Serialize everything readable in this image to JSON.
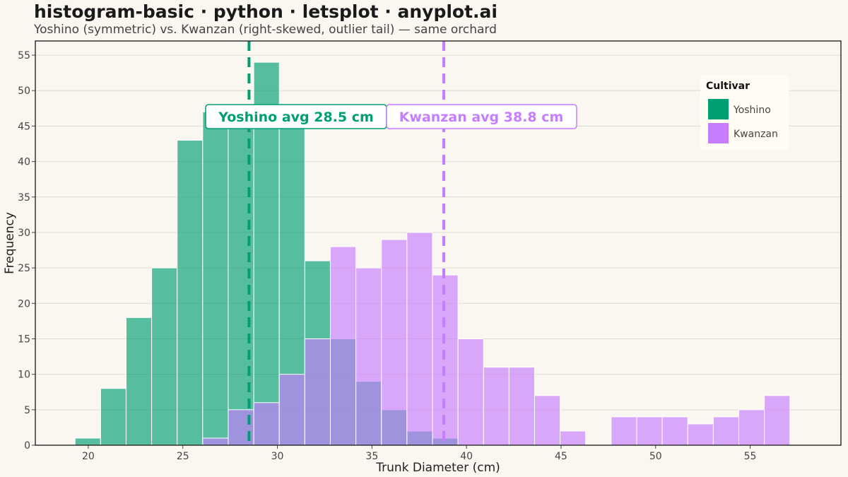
{
  "title": "histogram-basic · python · letsplot · anyplot.ai",
  "subtitle": "Yoshino (symmetric) vs. Kwanzan (right-skewed, outlier tail) — same orchard",
  "chart_data": {
    "type": "histogram",
    "xlabel": "Trunk Diameter (cm)",
    "ylabel": "Frequency",
    "xlim": [
      17.2,
      59.8
    ],
    "ylim": [
      0,
      57
    ],
    "x_ticks": [
      20,
      25,
      30,
      35,
      40,
      45,
      50,
      55
    ],
    "y_ticks": [
      0,
      5,
      10,
      15,
      20,
      25,
      30,
      35,
      40,
      45,
      50,
      55
    ],
    "grid": "horizontal",
    "legend": {
      "title": "Cultivar",
      "position": "top-right"
    },
    "bins": [
      [
        19.3,
        20.65
      ],
      [
        20.65,
        22.0
      ],
      [
        22.0,
        23.35
      ],
      [
        23.35,
        24.7
      ],
      [
        24.7,
        26.05
      ],
      [
        26.05,
        27.4
      ],
      [
        27.4,
        28.75
      ],
      [
        28.75,
        30.1
      ],
      [
        30.1,
        31.45
      ],
      [
        31.45,
        32.8
      ],
      [
        32.8,
        34.15
      ],
      [
        34.15,
        35.5
      ],
      [
        35.5,
        36.85
      ],
      [
        36.85,
        38.2
      ],
      [
        38.2,
        39.55
      ],
      [
        39.55,
        40.9
      ],
      [
        40.9,
        42.25
      ],
      [
        42.25,
        43.6
      ],
      [
        43.6,
        44.95
      ],
      [
        44.95,
        46.3
      ],
      [
        46.3,
        47.65
      ],
      [
        47.65,
        49.0
      ],
      [
        49.0,
        50.35
      ],
      [
        50.35,
        51.7
      ],
      [
        51.7,
        53.05
      ],
      [
        53.05,
        54.4
      ],
      [
        54.4,
        55.75
      ],
      [
        55.75,
        57.1
      ]
    ],
    "series": [
      {
        "name": "Yoshino",
        "color": "#009e73",
        "counts": [
          1,
          8,
          18,
          25,
          43,
          47,
          48,
          54,
          48,
          26,
          15,
          9,
          5,
          2,
          1,
          0,
          0,
          0,
          0,
          0,
          0,
          0,
          0,
          0,
          0,
          0,
          0,
          0
        ],
        "mean": 28.5,
        "mean_label": "Yoshino avg 28.5 cm"
      },
      {
        "name": "Kwanzan",
        "color": "#c77dff",
        "counts": [
          0,
          0,
          0,
          0,
          0,
          1,
          5,
          6,
          10,
          15,
          28,
          25,
          29,
          30,
          24,
          15,
          11,
          11,
          7,
          2,
          0,
          4,
          4,
          4,
          3,
          4,
          5,
          7
        ],
        "mean": 38.8,
        "mean_label": "Kwanzan avg 38.8 cm"
      }
    ]
  }
}
